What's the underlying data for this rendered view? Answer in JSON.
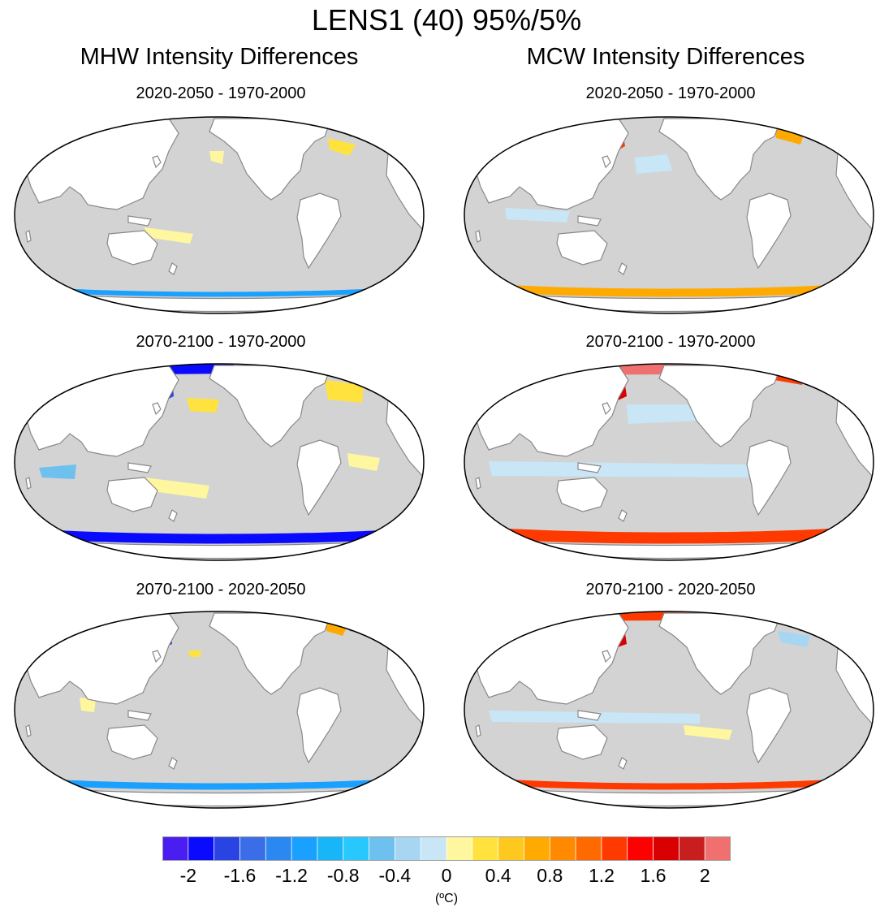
{
  "figure": {
    "title": "LENS1 (40) 95%/5%",
    "columns": [
      {
        "title": "MHW Intensity Differences"
      },
      {
        "title": "MCW Intensity Differences"
      }
    ],
    "rows": [
      {
        "label": "2020-2050 - 1970-2000"
      },
      {
        "label": "2070-2100 - 1970-2000"
      },
      {
        "label": "2070-2100 - 2020-2050"
      }
    ],
    "ocean_fill_color": "#d3d3d3",
    "land_fill_color": "#ffffff",
    "coast_color": "#888888"
  },
  "colorbar": {
    "colors": [
      "#4a1df0",
      "#0a0aff",
      "#2a44e4",
      "#3a6ee8",
      "#2a88f0",
      "#1aa0ff",
      "#18b6f8",
      "#28c8ff",
      "#6ec0ee",
      "#a6d6f2",
      "#c8e6f6",
      "#fff7a0",
      "#ffe23e",
      "#ffc81e",
      "#ffaa00",
      "#ff8a00",
      "#ff6a00",
      "#ff3a00",
      "#ff0000",
      "#d80000",
      "#c81e1e",
      "#f07070"
    ],
    "tick_labels": [
      "-2",
      "-1.6",
      "-1.2",
      "-0.8",
      "-0.4",
      "0",
      "0.4",
      "0.8",
      "1.2",
      "1.6",
      "2"
    ],
    "units": "(ºC)"
  }
}
